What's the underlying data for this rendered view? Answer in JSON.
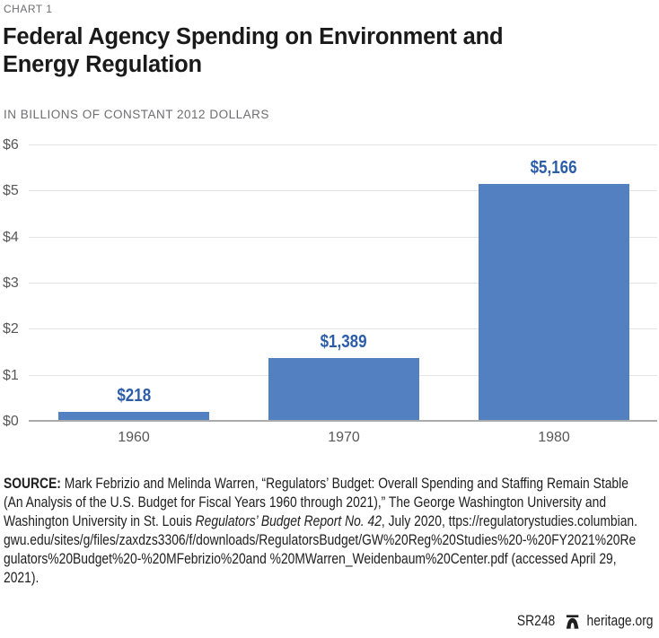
{
  "page": {
    "kicker": "CHART 1",
    "title_line1": "Federal Agency Spending on Environment and",
    "title_line2": "Energy Regulation",
    "subtitle": "IN BILLIONS OF CONSTANT 2012 DOLLARS"
  },
  "chart_data": {
    "type": "bar",
    "title": "Federal Agency Spending on Environment and Energy Regulation",
    "subtitle": "IN BILLIONS OF CONSTANT 2012 DOLLARS",
    "categories": [
      "1960",
      "1970",
      "1980"
    ],
    "values": [
      0.218,
      1.389,
      5.166
    ],
    "value_labels": [
      "$218",
      "$1,389",
      "$5,166"
    ],
    "y_ticks": [
      "$0",
      "$1",
      "$2",
      "$3",
      "$4",
      "$5",
      "$6"
    ],
    "ylim": [
      0,
      6
    ],
    "grid": true,
    "legend": false,
    "bar_color": "#5380c1",
    "value_label_color": "#2c5da9"
  },
  "source": {
    "label": "SOURCE:",
    "full_text": "SOURCE: Mark Febrizio and Melinda Warren, “Regulators’ Budget: Overall Spending and Staffing Remain Stable (An Analysis of the U.S. Budget for Fiscal Years 1960 through 2021),” The George Washington University and Washington University in St. Louis Regulators’ Budget Report No. 42, July 2020, ttps://regulatorystudies.columbian.gwu.edu/sites/g/files/zaxdzs3306/f/downloads/RegulatorsBudget/GW%20Reg%20Studies%20-%20FY2021%20Regulators%20Budget%20-%20MFebrizio%20and %20MWarren_Weidenbaum%20Center.pdf (accessed April 29, 2021).",
    "l1": " Mark Febrizio and Melinda Warren, “Regulators’ Budget: Overall Spending and Staffing Remain Stable",
    "l2": "(An Analysis of the U.S. Budget for Fiscal Years 1960 through 2021),” The George Washington University and",
    "l3pre": "Washington University in St. Louis ",
    "l3italic": "Regulators’ Budget Report No. 42",
    "l3post": ", July 2020, ttps://regulatorystudies.columbian.",
    "l4": "gwu.edu/sites/g/files/zaxdzs3306/f/downloads/RegulatorsBudget/GW%20Reg%20Studies%20-%20FY2021%20Re",
    "l5": "gulators%20Budget%20-%20MFebrizio%20and %20MWarren_Weidenbaum%20Center.pdf (accessed April 29,",
    "l6": "2021)."
  },
  "footer": {
    "report_id": "SR248",
    "logo": "liberty-bell-icon",
    "site": "heritage.org"
  }
}
